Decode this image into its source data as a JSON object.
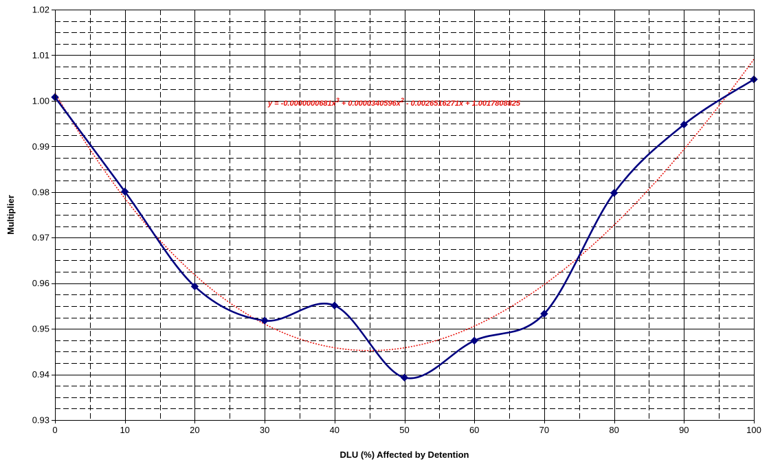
{
  "chart_data": {
    "type": "line",
    "xlabel": "DLU (%) Affected by Detention",
    "ylabel": "Multiplier",
    "xlim": [
      0,
      100
    ],
    "ylim": [
      0.93,
      1.02
    ],
    "x_major_ticks": [
      0,
      10,
      20,
      30,
      40,
      50,
      60,
      70,
      80,
      90,
      100
    ],
    "x_minor_step": 5,
    "y_major_ticks": [
      0.93,
      0.94,
      0.95,
      0.96,
      0.97,
      0.98,
      0.99,
      1.0,
      1.01,
      1.02
    ],
    "y_tick_labels": [
      "0.93",
      "0.94",
      "0.95",
      "0.96",
      "0.97",
      "0.98",
      "0.99",
      "1.00",
      "1.01",
      "1.02"
    ],
    "y_minor_step": 0.0025,
    "grid": true,
    "series": [
      {
        "x": [
          0,
          10,
          20,
          30,
          40,
          50,
          60,
          70,
          80,
          90,
          100
        ],
        "values": [
          1.0008,
          0.9801,
          0.9593,
          0.9518,
          0.9551,
          0.9393,
          0.9474,
          0.9533,
          0.9798,
          0.9948,
          1.0047
        ],
        "color": "#000080",
        "marker": "diamond",
        "smooth": true
      }
    ],
    "trendline": {
      "kind": "polynomial",
      "order": 3,
      "coefficients": [
        -6.81e-08,
        3.40596e-05,
        -0.0026516271,
        1.0017808825
      ],
      "color": "#e8120c",
      "style": "dotted",
      "equation": {
        "prefix": "y = -0.0000000681x",
        "exp1": "3",
        "mid1": " + 0.0000340596x",
        "exp2": "2",
        "rest": " - 0.0026516271x + 1.0017808825"
      }
    }
  }
}
